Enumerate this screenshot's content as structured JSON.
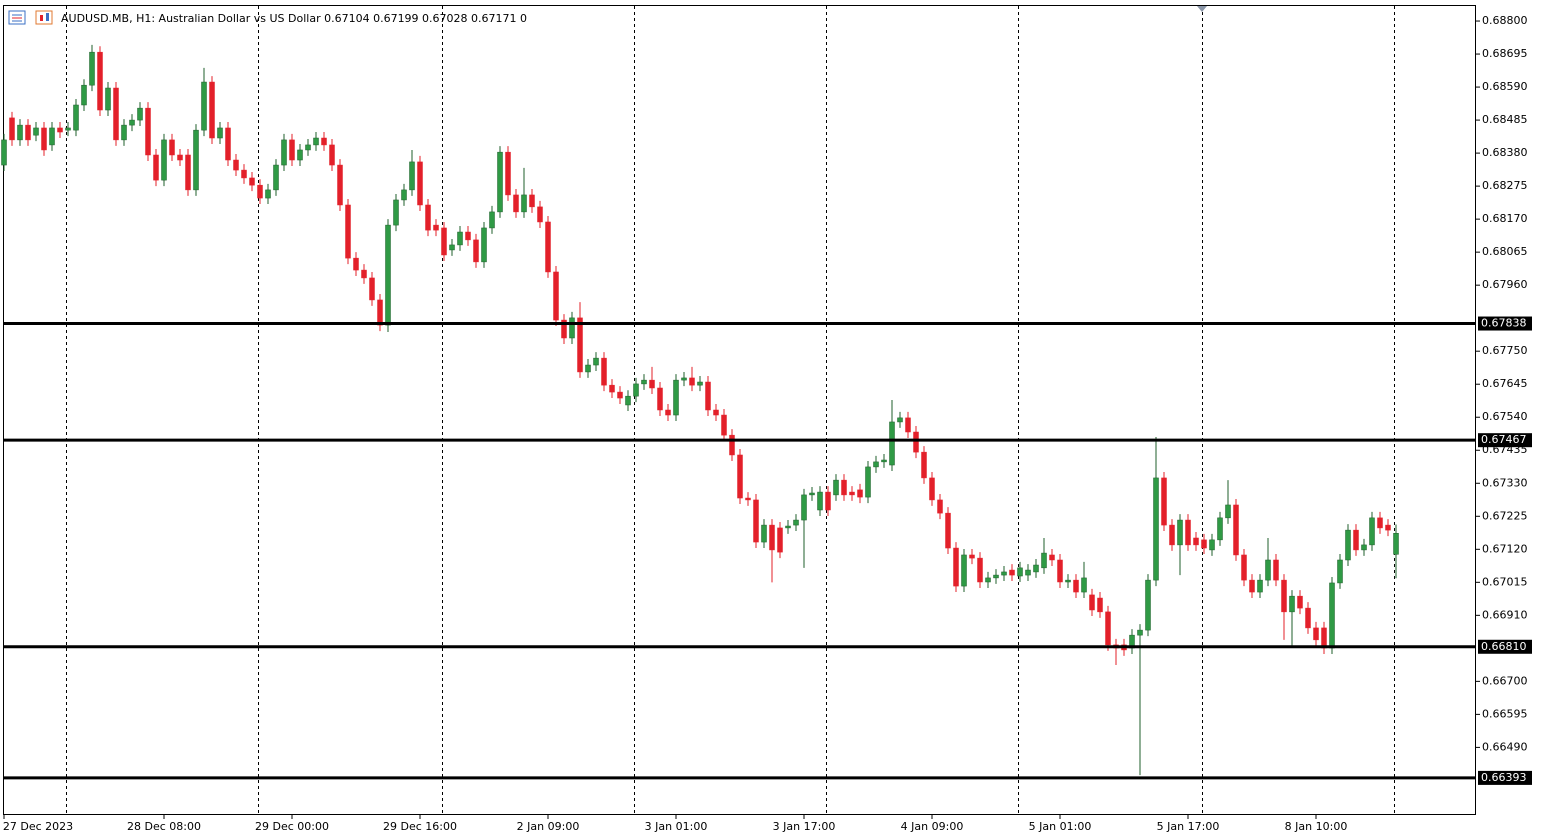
{
  "chart_data": {
    "type": "candlestick",
    "title": "AUDUSD.MB, H1:  Australian Dollar vs US Dollar  0.67104 0.67199 0.67028 0.67171  0",
    "up_color": "#2f9a45",
    "down_color": "#e3202a",
    "open": [
      0.68342,
      0.68492,
      0.68422,
      0.68469,
      0.68437,
      0.6846,
      0.68406,
      0.6846,
      0.68453,
      0.68453,
      0.68533,
      0.68596,
      0.68701,
      0.68517,
      0.68587,
      0.68422,
      0.68469,
      0.68485,
      0.68523,
      0.68374,
      0.68294,
      0.68422,
      0.68374,
      0.68374,
      0.68263,
      0.68453,
      0.68606,
      0.68428,
      0.6846,
      0.68358,
      0.68326,
      0.68301,
      0.68278,
      0.68237,
      0.68263,
      0.68342,
      0.68422,
      0.68358,
      0.6839,
      0.68406,
      0.68428,
      0.68406,
      0.68342,
      0.68215,
      0.68046,
      0.68008,
      0.67983,
      0.67913,
      0.67833,
      0.68151,
      0.68231,
      0.68263,
      0.68352,
      0.68215,
      0.68151,
      0.68142,
      0.68072,
      0.68088,
      0.68129,
      0.68104,
      0.68034,
      0.68142,
      0.68193,
      0.68383,
      0.68247,
      0.68193,
      0.68247,
      0.68209,
      0.68161,
      0.68002,
      0.67849,
      0.67792,
      0.67856,
      0.67684,
      0.67706,
      0.67728,
      0.67642,
      0.6762,
      0.67579,
      0.67607,
      0.67646,
      0.67658,
      0.67633,
      0.67563,
      0.67547,
      0.67658,
      0.67665,
      0.67642,
      0.67652,
      0.67563,
      0.67547,
      0.67483,
      0.6742,
      0.67283,
      0.67277,
      0.67143,
      0.67197,
      0.67188,
      0.67188,
      0.67197,
      0.67213,
      0.67293,
      0.67245,
      0.67302,
      0.67293,
      0.6734,
      0.67302,
      0.67309,
      0.67286,
      0.67382,
      0.67398,
      0.67388,
      0.67525,
      0.67538,
      0.67493,
      0.67429,
      0.67347,
      0.67277,
      0.67235,
      0.67124,
      0.67003,
      0.67102,
      0.67092,
      0.67016,
      0.67029,
      0.67038,
      0.67054,
      0.67035,
      0.67038,
      0.67048,
      0.67061,
      0.67102,
      0.67086,
      0.67016,
      0.67022,
      0.66984,
      0.66975,
      0.66965,
      0.66921,
      0.66816,
      0.66816,
      0.66806,
      0.66847,
      0.66863,
      0.67022,
      0.67347,
      0.67197,
      0.67134,
      0.67213,
      0.67156,
      0.6715,
      0.67118,
      0.6715,
      0.6722,
      0.67261,
      0.67102,
      0.67022,
      0.66984,
      0.67022,
      0.67086,
      0.67022,
      0.66921,
      0.66971,
      0.66933,
      0.6687,
      0.6687,
      0.66806,
      0.67013,
      0.67086,
      0.67181,
      0.67118,
      0.67134,
      0.6722,
      0.67197,
      0.67104
    ],
    "high": [
      0.68441,
      0.68511,
      0.68488,
      0.68488,
      0.68479,
      0.68479,
      0.68479,
      0.68479,
      0.68479,
      0.68552,
      0.68615,
      0.68724,
      0.6872,
      0.68606,
      0.68606,
      0.68488,
      0.68504,
      0.68542,
      0.68542,
      0.68393,
      0.68441,
      0.68441,
      0.68393,
      0.68393,
      0.68472,
      0.68651,
      0.68625,
      0.68479,
      0.68479,
      0.68377,
      0.68345,
      0.6832,
      0.68297,
      0.68282,
      0.68361,
      0.68441,
      0.68441,
      0.68409,
      0.68425,
      0.68447,
      0.68447,
      0.68425,
      0.68361,
      0.68234,
      0.68065,
      0.68027,
      0.68002,
      0.67932,
      0.6817,
      0.6825,
      0.68282,
      0.6839,
      0.68371,
      0.68234,
      0.6817,
      0.68161,
      0.68107,
      0.68148,
      0.68148,
      0.68123,
      0.68161,
      0.68212,
      0.68402,
      0.68402,
      0.68266,
      0.68333,
      0.68266,
      0.68228,
      0.6818,
      0.68021,
      0.67868,
      0.67875,
      0.67906,
      0.67725,
      0.67747,
      0.67747,
      0.67661,
      0.67639,
      0.67626,
      0.67665,
      0.67677,
      0.677,
      0.67652,
      0.67582,
      0.67677,
      0.67684,
      0.677,
      0.67671,
      0.67671,
      0.67582,
      0.67566,
      0.67502,
      0.67439,
      0.67302,
      0.67296,
      0.67216,
      0.67216,
      0.67207,
      0.67213,
      0.67232,
      0.67312,
      0.67318,
      0.67321,
      0.67321,
      0.67359,
      0.67359,
      0.67321,
      0.67328,
      0.67401,
      0.67417,
      0.67423,
      0.67595,
      0.67557,
      0.67557,
      0.67512,
      0.67448,
      0.67366,
      0.67296,
      0.67254,
      0.67143,
      0.67121,
      0.67121,
      0.67111,
      0.67048,
      0.67057,
      0.67067,
      0.67073,
      0.6708,
      0.67073,
      0.67089,
      0.67156,
      0.67121,
      0.67105,
      0.67041,
      0.67041,
      0.6708,
      0.66994,
      0.66984,
      0.6694,
      0.66835,
      0.66835,
      0.66866,
      0.66882,
      0.67041,
      0.67477,
      0.67366,
      0.67216,
      0.67232,
      0.67232,
      0.67175,
      0.67169,
      0.67169,
      0.67239,
      0.6734,
      0.6728,
      0.67121,
      0.67041,
      0.67041,
      0.67156,
      0.67105,
      0.67041,
      0.6699,
      0.6699,
      0.66952,
      0.66889,
      0.66889,
      0.67032,
      0.67105,
      0.672,
      0.672,
      0.67153,
      0.67239,
      0.67239,
      0.67216,
      0.67199
    ],
    "low": [
      0.68323,
      0.68403,
      0.68403,
      0.68403,
      0.68418,
      0.68371,
      0.68387,
      0.68428,
      0.68434,
      0.68434,
      0.68514,
      0.68577,
      0.68498,
      0.68498,
      0.68403,
      0.68403,
      0.6845,
      0.68466,
      0.68355,
      0.68275,
      0.68275,
      0.68355,
      0.68339,
      0.68244,
      0.68244,
      0.68434,
      0.68409,
      0.68409,
      0.68339,
      0.68307,
      0.68282,
      0.68259,
      0.68218,
      0.68218,
      0.68244,
      0.68323,
      0.68339,
      0.68339,
      0.68371,
      0.68387,
      0.68387,
      0.68323,
      0.68196,
      0.68027,
      0.67989,
      0.67964,
      0.67894,
      0.67814,
      0.67811,
      0.68132,
      0.68212,
      0.68244,
      0.68196,
      0.68116,
      0.68116,
      0.68037,
      0.68053,
      0.68069,
      0.68085,
      0.68015,
      0.68015,
      0.68123,
      0.68174,
      0.68228,
      0.68174,
      0.68174,
      0.6819,
      0.68142,
      0.67983,
      0.6783,
      0.67773,
      0.67773,
      0.67665,
      0.67665,
      0.67687,
      0.67623,
      0.67601,
      0.67582,
      0.6756,
      0.67588,
      0.67627,
      0.67614,
      0.67544,
      0.67528,
      0.67528,
      0.67639,
      0.67623,
      0.67623,
      0.67544,
      0.67528,
      0.67464,
      0.67401,
      0.67264,
      0.67258,
      0.67124,
      0.67124,
      0.67015,
      0.67092,
      0.67169,
      0.67178,
      0.67061,
      0.67274,
      0.67226,
      0.67226,
      0.67274,
      0.67274,
      0.67274,
      0.67267,
      0.67267,
      0.67363,
      0.67379,
      0.67369,
      0.67506,
      0.67474,
      0.6741,
      0.67328,
      0.67258,
      0.67216,
      0.67105,
      0.66984,
      0.66984,
      0.67073,
      0.66997,
      0.66997,
      0.6701,
      0.67019,
      0.67019,
      0.67016,
      0.67019,
      0.67029,
      0.67042,
      0.67067,
      0.66997,
      0.66997,
      0.66965,
      0.66965,
      0.66908,
      0.66902,
      0.66797,
      0.66752,
      0.66781,
      0.66787,
      0.66402,
      0.66844,
      0.67003,
      0.67178,
      0.67115,
      0.67038,
      0.67115,
      0.67115,
      0.67105,
      0.67099,
      0.67131,
      0.67201,
      0.67083,
      0.67003,
      0.66965,
      0.66965,
      0.67003,
      0.67003,
      0.66832,
      0.66806,
      0.66914,
      0.66851,
      0.66813,
      0.66787,
      0.66787,
      0.66994,
      0.67067,
      0.67099,
      0.67099,
      0.67115,
      0.67169,
      0.67162,
      0.67028
    ],
    "close": [
      0.68422,
      0.68422,
      0.68469,
      0.68422,
      0.6846,
      0.6839,
      0.6846,
      0.68447,
      0.6846,
      0.68533,
      0.68596,
      0.68701,
      0.68517,
      0.68587,
      0.68422,
      0.68469,
      0.68485,
      0.68523,
      0.68374,
      0.68294,
      0.68422,
      0.68374,
      0.68358,
      0.68263,
      0.68453,
      0.68606,
      0.68428,
      0.6846,
      0.68358,
      0.68326,
      0.68301,
      0.68278,
      0.68237,
      0.68263,
      0.68342,
      0.68422,
      0.68358,
      0.6839,
      0.68406,
      0.68428,
      0.68406,
      0.68342,
      0.68215,
      0.68046,
      0.68008,
      0.67983,
      0.67913,
      0.67833,
      0.68151,
      0.68231,
      0.68263,
      0.68352,
      0.68215,
      0.68135,
      0.68135,
      0.68056,
      0.68088,
      0.68129,
      0.68104,
      0.68034,
      0.68142,
      0.68193,
      0.68383,
      0.68247,
      0.68193,
      0.68247,
      0.68209,
      0.68161,
      0.68002,
      0.67849,
      0.67792,
      0.67856,
      0.67684,
      0.67706,
      0.67728,
      0.67642,
      0.6762,
      0.67601,
      0.67607,
      0.67646,
      0.67658,
      0.67633,
      0.67563,
      0.67547,
      0.67658,
      0.67665,
      0.67642,
      0.67652,
      0.67563,
      0.67547,
      0.67483,
      0.6742,
      0.67283,
      0.67277,
      0.67143,
      0.67197,
      0.67118,
      0.67111,
      0.67194,
      0.67213,
      0.67293,
      0.67299,
      0.67302,
      0.67245,
      0.6734,
      0.67293,
      0.67293,
      0.67286,
      0.67382,
      0.67398,
      0.67404,
      0.67525,
      0.67538,
      0.67493,
      0.67429,
      0.67347,
      0.67277,
      0.67235,
      0.67124,
      0.67003,
      0.67102,
      0.67092,
      0.67016,
      0.67029,
      0.67038,
      0.67048,
      0.67038,
      0.67061,
      0.67054,
      0.6707,
      0.67108,
      0.67086,
      0.67016,
      0.67022,
      0.66984,
      0.67029,
      0.66927,
      0.66921,
      0.66816,
      0.66806,
      0.668,
      0.66847,
      0.66863,
      0.67022,
      0.67347,
      0.67197,
      0.67134,
      0.67213,
      0.67134,
      0.67134,
      0.67124,
      0.6715,
      0.6722,
      0.67261,
      0.67102,
      0.67022,
      0.66984,
      0.67022,
      0.67086,
      0.67022,
      0.66921,
      0.66971,
      0.66933,
      0.6687,
      0.66832,
      0.66806,
      0.67013,
      0.67086,
      0.67181,
      0.67118,
      0.67134,
      0.6722,
      0.67188,
      0.67181,
      0.67171
    ],
    "xlim": [
      -0.5,
      184
    ],
    "xticks": [
      {
        "value": 0,
        "label": "27 Dec 2023"
      },
      {
        "value": 20,
        "label": "28 Dec 08:00"
      },
      {
        "value": 36,
        "label": "29 Dec 00:00"
      },
      {
        "value": 52,
        "label": "29 Dec 16:00"
      },
      {
        "value": 68,
        "label": "2 Jan 09:00"
      },
      {
        "value": 84,
        "label": "3 Jan 01:00"
      },
      {
        "value": 100,
        "label": "3 Jan 17:00"
      },
      {
        "value": 116,
        "label": "4 Jan 09:00"
      },
      {
        "value": 132,
        "label": "5 Jan 01:00"
      },
      {
        "value": 148,
        "label": "5 Jan 17:00"
      },
      {
        "value": 164,
        "label": "8 Jan 10:00"
      }
    ],
    "ylim": [
      0.66275,
      0.68851
    ],
    "yticks": [
      {
        "value": 0.688,
        "label": "0.68800"
      },
      0.68695,
      {
        "value": 0.6859,
        "label": "0.68590"
      },
      0.68485,
      {
        "value": 0.6838,
        "label": "0.68380"
      },
      0.68275,
      {
        "value": 0.6817,
        "label": "0.68170"
      },
      0.68065,
      {
        "value": 0.6796,
        "label": "0.67960"
      },
      {
        "value": 0.6775,
        "label": "0.67750"
      },
      0.67645,
      {
        "value": 0.6754,
        "label": "0.67540"
      },
      0.67435,
      {
        "value": 0.6733,
        "label": "0.67330"
      },
      0.67225,
      {
        "value": 0.6712,
        "label": "0.67120"
      },
      0.67015,
      {
        "value": 0.6691,
        "label": "0.66910"
      },
      {
        "value": 0.667,
        "label": "0.66700"
      },
      0.66595,
      {
        "value": 0.6649,
        "label": "0.66490"
      }
    ],
    "levels": [
      0.67838,
      0.67467,
      {
        "value": 0.6681,
        "label": "0.66810"
      },
      0.66393
    ]
  }
}
